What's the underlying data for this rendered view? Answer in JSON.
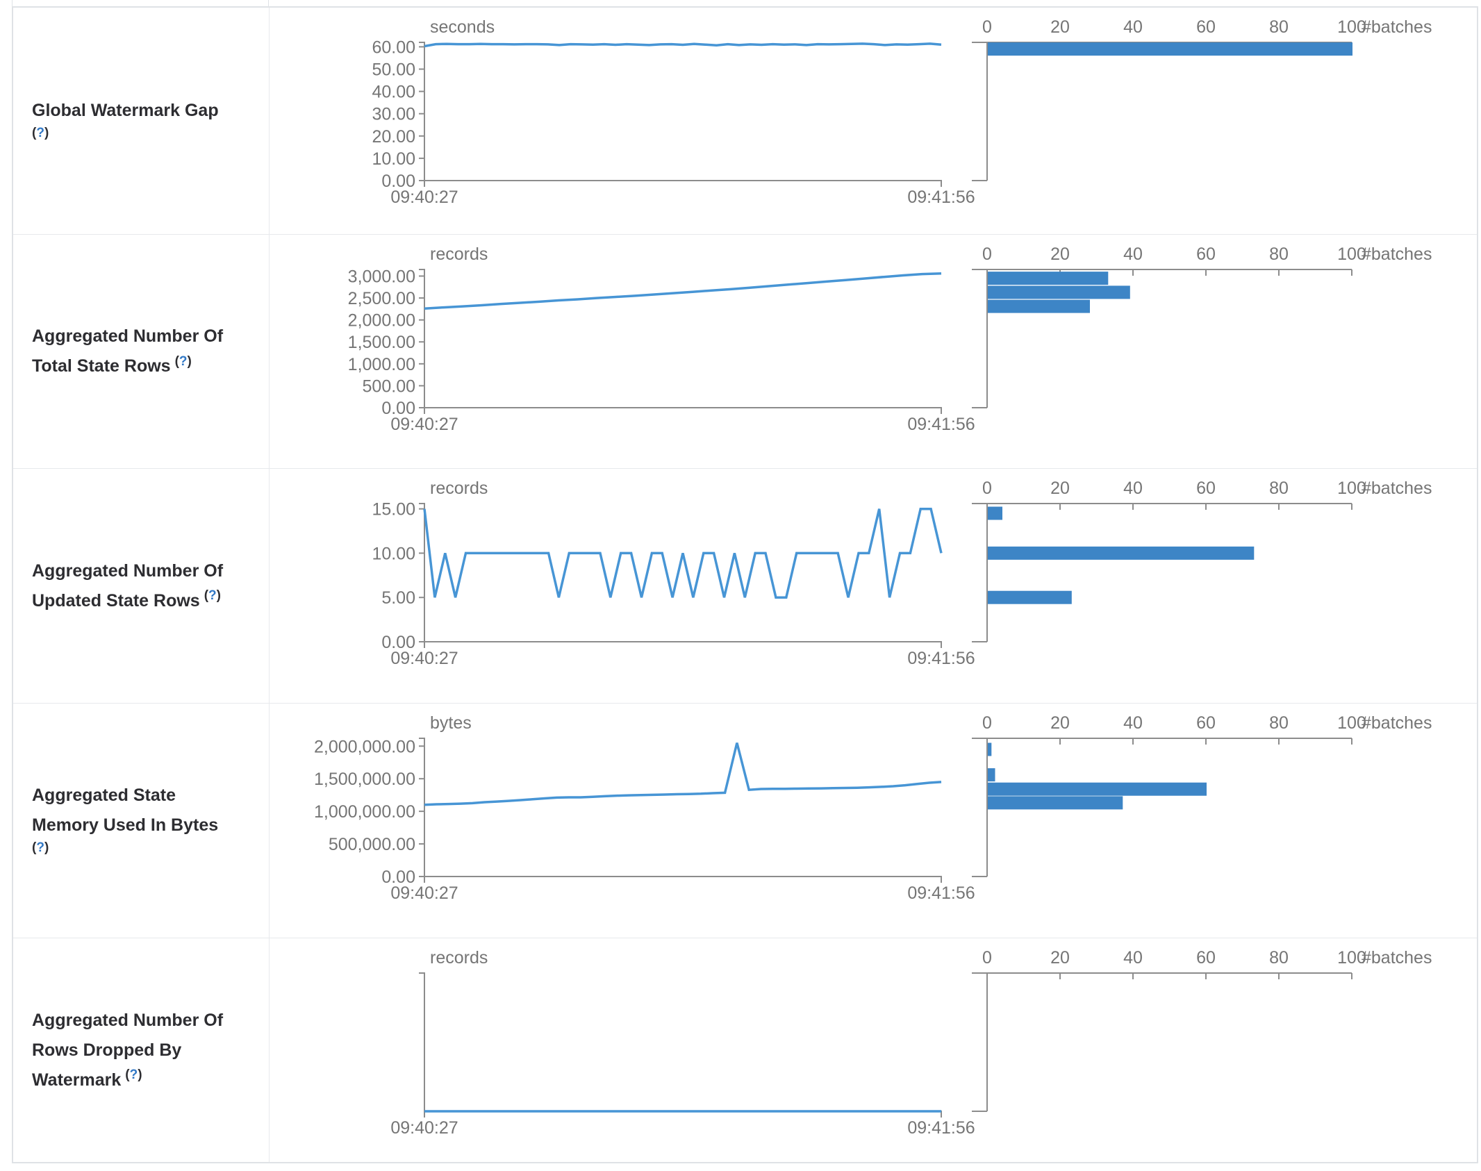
{
  "colors": {
    "line": "#4795d5",
    "bar": "#3d85c6",
    "axis": "#8c8c8c",
    "muted_text": "#757575",
    "label_text": "#2d2d31",
    "help": "#3178c6",
    "border": "#dfe2e6"
  },
  "x_axis": {
    "start": "09:40:27",
    "end": "09:41:56"
  },
  "histogram_axis": {
    "tick_values": [
      0,
      20,
      40,
      60,
      80,
      100
    ],
    "tick_labels": [
      "0",
      "20",
      "40",
      "60",
      "80",
      "100"
    ],
    "unit": "#batches"
  },
  "chart_data": [
    {
      "type": "line",
      "title": "Global Watermark Gap timeline",
      "ylabel": "seconds",
      "x_range": [
        "09:40:27",
        "09:41:56"
      ],
      "ylim": [
        0,
        62
      ],
      "values": [
        60.3,
        61.2,
        61.3,
        61.2,
        61.2,
        61.3,
        61.2,
        61.2,
        61.1,
        61.2,
        61.2,
        61.1,
        60.8,
        61.2,
        61.1,
        61.0,
        61.2,
        60.9,
        61.2,
        61.0,
        60.8,
        61.1,
        61.2,
        60.9,
        61.3,
        61.0,
        60.7,
        61.2,
        60.8,
        61.1,
        60.9,
        61.2,
        61.0,
        61.1,
        60.8,
        61.2,
        61.1,
        61.2,
        61.3,
        61.4,
        61.2,
        60.8,
        61.1,
        61.0,
        61.2,
        61.4,
        61.0
      ]
    },
    {
      "type": "bar",
      "title": "Global Watermark Gap histogram (#batches)",
      "categories": [
        59
      ],
      "values": [
        100
      ]
    },
    {
      "type": "line",
      "title": "Aggregated Number Of Total State Rows timeline",
      "ylabel": "records",
      "x_range": [
        "09:40:27",
        "09:41:56"
      ],
      "ylim": [
        0,
        3150
      ],
      "values": [
        2260,
        2285,
        2310,
        2335,
        2365,
        2390,
        2415,
        2445,
        2470,
        2500,
        2525,
        2550,
        2580,
        2610,
        2640,
        2670,
        2700,
        2735,
        2770,
        2805,
        2840,
        2875,
        2910,
        2945,
        2980,
        3015,
        3045,
        3060
      ]
    },
    {
      "type": "bar",
      "title": "Aggregated Number Of Total State Rows histogram (#batches)",
      "categories": [
        2950,
        2630,
        2310
      ],
      "values": [
        33,
        39,
        28
      ]
    },
    {
      "type": "line",
      "title": "Aggregated Number Of Updated State Rows timeline",
      "ylabel": "records",
      "x_range": [
        "09:40:27",
        "09:41:56"
      ],
      "ylim": [
        0,
        15.6
      ],
      "values": [
        15,
        5,
        10,
        5,
        10,
        10,
        10,
        10,
        10,
        10,
        10,
        10,
        10,
        5,
        10,
        10,
        10,
        10,
        5,
        10,
        10,
        5,
        10,
        10,
        5,
        10,
        5,
        10,
        10,
        5,
        10,
        5,
        10,
        10,
        5,
        5,
        10,
        10,
        10,
        10,
        10,
        5,
        10,
        10,
        15,
        5,
        10,
        10,
        15,
        15,
        10
      ]
    },
    {
      "type": "bar",
      "title": "Aggregated Number Of Updated State Rows histogram (#batches)",
      "categories": [
        14.5,
        10,
        5
      ],
      "values": [
        4,
        73,
        23
      ]
    },
    {
      "type": "line",
      "title": "Aggregated State Memory Used In Bytes timeline",
      "ylabel": "bytes",
      "x_range": [
        "09:40:27",
        "09:41:56"
      ],
      "ylim": [
        0,
        2120000
      ],
      "values": [
        1100000,
        1108000,
        1112000,
        1118000,
        1125000,
        1140000,
        1150000,
        1160000,
        1172000,
        1185000,
        1198000,
        1210000,
        1215000,
        1215000,
        1222000,
        1232000,
        1240000,
        1245000,
        1250000,
        1253000,
        1257000,
        1262000,
        1266000,
        1270000,
        1278000,
        1285000,
        2050000,
        1330000,
        1342000,
        1345000,
        1345000,
        1348000,
        1350000,
        1352000,
        1355000,
        1358000,
        1362000,
        1368000,
        1375000,
        1385000,
        1400000,
        1420000,
        1438000,
        1450000
      ]
    },
    {
      "type": "bar",
      "title": "Aggregated State Memory Used In Bytes histogram (#batches)",
      "categories": [
        1950000,
        1560000,
        1340000,
        1130000
      ],
      "values": [
        1,
        2,
        60,
        37
      ]
    },
    {
      "type": "line",
      "title": "Aggregated Number Of Rows Dropped By Watermark timeline",
      "ylabel": "records",
      "x_range": [
        "09:40:27",
        "09:41:56"
      ],
      "ylim": [
        0,
        1
      ],
      "values": [
        0,
        0
      ]
    },
    {
      "type": "bar",
      "title": "Aggregated Number Of Rows Dropped By Watermark histogram (#batches)",
      "categories": [],
      "values": []
    }
  ],
  "rows": [
    {
      "label": {
        "lines": [
          "Global Watermark Gap"
        ],
        "help": "(?)",
        "help_inline": false
      },
      "timeline": {
        "unit": "seconds",
        "domain_max": 62,
        "y_ticks": [
          {
            "v": 60,
            "t": "60.00"
          },
          {
            "v": 50,
            "t": "50.00"
          },
          {
            "v": 40,
            "t": "40.00"
          },
          {
            "v": 30,
            "t": "30.00"
          },
          {
            "v": 20,
            "t": "20.00"
          },
          {
            "v": 10,
            "t": "10.00"
          },
          {
            "v": 0,
            "t": "0.00"
          }
        ],
        "points": [
          60.3,
          61.2,
          61.3,
          61.2,
          61.2,
          61.3,
          61.2,
          61.2,
          61.1,
          61.2,
          61.2,
          61.1,
          60.8,
          61.2,
          61.1,
          61.0,
          61.2,
          60.9,
          61.2,
          61.0,
          60.8,
          61.1,
          61.2,
          60.9,
          61.3,
          61.0,
          60.7,
          61.2,
          60.8,
          61.1,
          60.9,
          61.2,
          61.0,
          61.1,
          60.8,
          61.2,
          61.1,
          61.2,
          61.3,
          61.4,
          61.2,
          60.8,
          61.1,
          61.0,
          61.2,
          61.4,
          61.0
        ]
      },
      "histogram": {
        "bars": [
          {
            "bin": 59,
            "count": 100
          }
        ]
      }
    },
    {
      "label": {
        "lines": [
          "Aggregated Number Of",
          "Total State Rows"
        ],
        "help": "(?)",
        "help_inline": true
      },
      "timeline": {
        "unit": "records",
        "domain_max": 3150,
        "y_ticks": [
          {
            "v": 3000,
            "t": "3,000.00"
          },
          {
            "v": 2500,
            "t": "2,500.00"
          },
          {
            "v": 2000,
            "t": "2,000.00"
          },
          {
            "v": 1500,
            "t": "1,500.00"
          },
          {
            "v": 1000,
            "t": "1,000.00"
          },
          {
            "v": 500,
            "t": "500.00"
          },
          {
            "v": 0,
            "t": "0.00"
          }
        ],
        "points": [
          2260,
          2285,
          2310,
          2335,
          2365,
          2390,
          2415,
          2445,
          2470,
          2500,
          2525,
          2550,
          2580,
          2610,
          2640,
          2670,
          2700,
          2735,
          2770,
          2805,
          2840,
          2875,
          2910,
          2945,
          2980,
          3015,
          3045,
          3060
        ]
      },
      "histogram": {
        "bars": [
          {
            "bin": 2950,
            "count": 33
          },
          {
            "bin": 2630,
            "count": 39
          },
          {
            "bin": 2310,
            "count": 28
          }
        ]
      }
    },
    {
      "label": {
        "lines": [
          "Aggregated Number Of",
          "Updated State Rows"
        ],
        "help": "(?)",
        "help_inline": true
      },
      "timeline": {
        "unit": "records",
        "domain_max": 15.6,
        "y_ticks": [
          {
            "v": 15,
            "t": "15.00"
          },
          {
            "v": 10,
            "t": "10.00"
          },
          {
            "v": 5,
            "t": "5.00"
          },
          {
            "v": 0,
            "t": "0.00"
          }
        ],
        "points": [
          15,
          5,
          10,
          5,
          10,
          10,
          10,
          10,
          10,
          10,
          10,
          10,
          10,
          5,
          10,
          10,
          10,
          10,
          5,
          10,
          10,
          5,
          10,
          10,
          5,
          10,
          5,
          10,
          10,
          5,
          10,
          5,
          10,
          10,
          5,
          5,
          10,
          10,
          10,
          10,
          10,
          5,
          10,
          10,
          15,
          5,
          10,
          10,
          15,
          15,
          10
        ]
      },
      "histogram": {
        "bars": [
          {
            "bin": 14.5,
            "count": 4
          },
          {
            "bin": 10,
            "count": 73
          },
          {
            "bin": 5,
            "count": 23
          }
        ]
      }
    },
    {
      "label": {
        "lines": [
          "Aggregated State",
          "Memory Used In Bytes"
        ],
        "help": "(?)",
        "help_inline": false
      },
      "timeline": {
        "unit": "bytes",
        "domain_max": 2120000,
        "y_ticks": [
          {
            "v": 2000000,
            "t": "2,000,000.00"
          },
          {
            "v": 1500000,
            "t": "1,500,000.00"
          },
          {
            "v": 1000000,
            "t": "1,000,000.00"
          },
          {
            "v": 500000,
            "t": "500,000.00"
          },
          {
            "v": 0,
            "t": "0.00"
          }
        ],
        "points": [
          1100000,
          1108000,
          1112000,
          1118000,
          1125000,
          1140000,
          1150000,
          1160000,
          1172000,
          1185000,
          1198000,
          1210000,
          1215000,
          1215000,
          1222000,
          1232000,
          1240000,
          1245000,
          1250000,
          1253000,
          1257000,
          1262000,
          1266000,
          1270000,
          1278000,
          1285000,
          2050000,
          1330000,
          1342000,
          1345000,
          1345000,
          1348000,
          1350000,
          1352000,
          1355000,
          1358000,
          1362000,
          1368000,
          1375000,
          1385000,
          1400000,
          1420000,
          1438000,
          1450000
        ]
      },
      "histogram": {
        "bars": [
          {
            "bin": 1950000,
            "count": 1
          },
          {
            "bin": 1560000,
            "count": 2
          },
          {
            "bin": 1340000,
            "count": 60
          },
          {
            "bin": 1130000,
            "count": 37
          }
        ]
      }
    },
    {
      "label": {
        "lines": [
          "Aggregated Number Of",
          "Rows Dropped By",
          "Watermark"
        ],
        "help": "(?)",
        "help_inline": true
      },
      "timeline": {
        "unit": "records",
        "domain_max": 1,
        "y_ticks": [],
        "points": [
          0,
          0
        ]
      },
      "histogram": {
        "bars": []
      }
    }
  ]
}
